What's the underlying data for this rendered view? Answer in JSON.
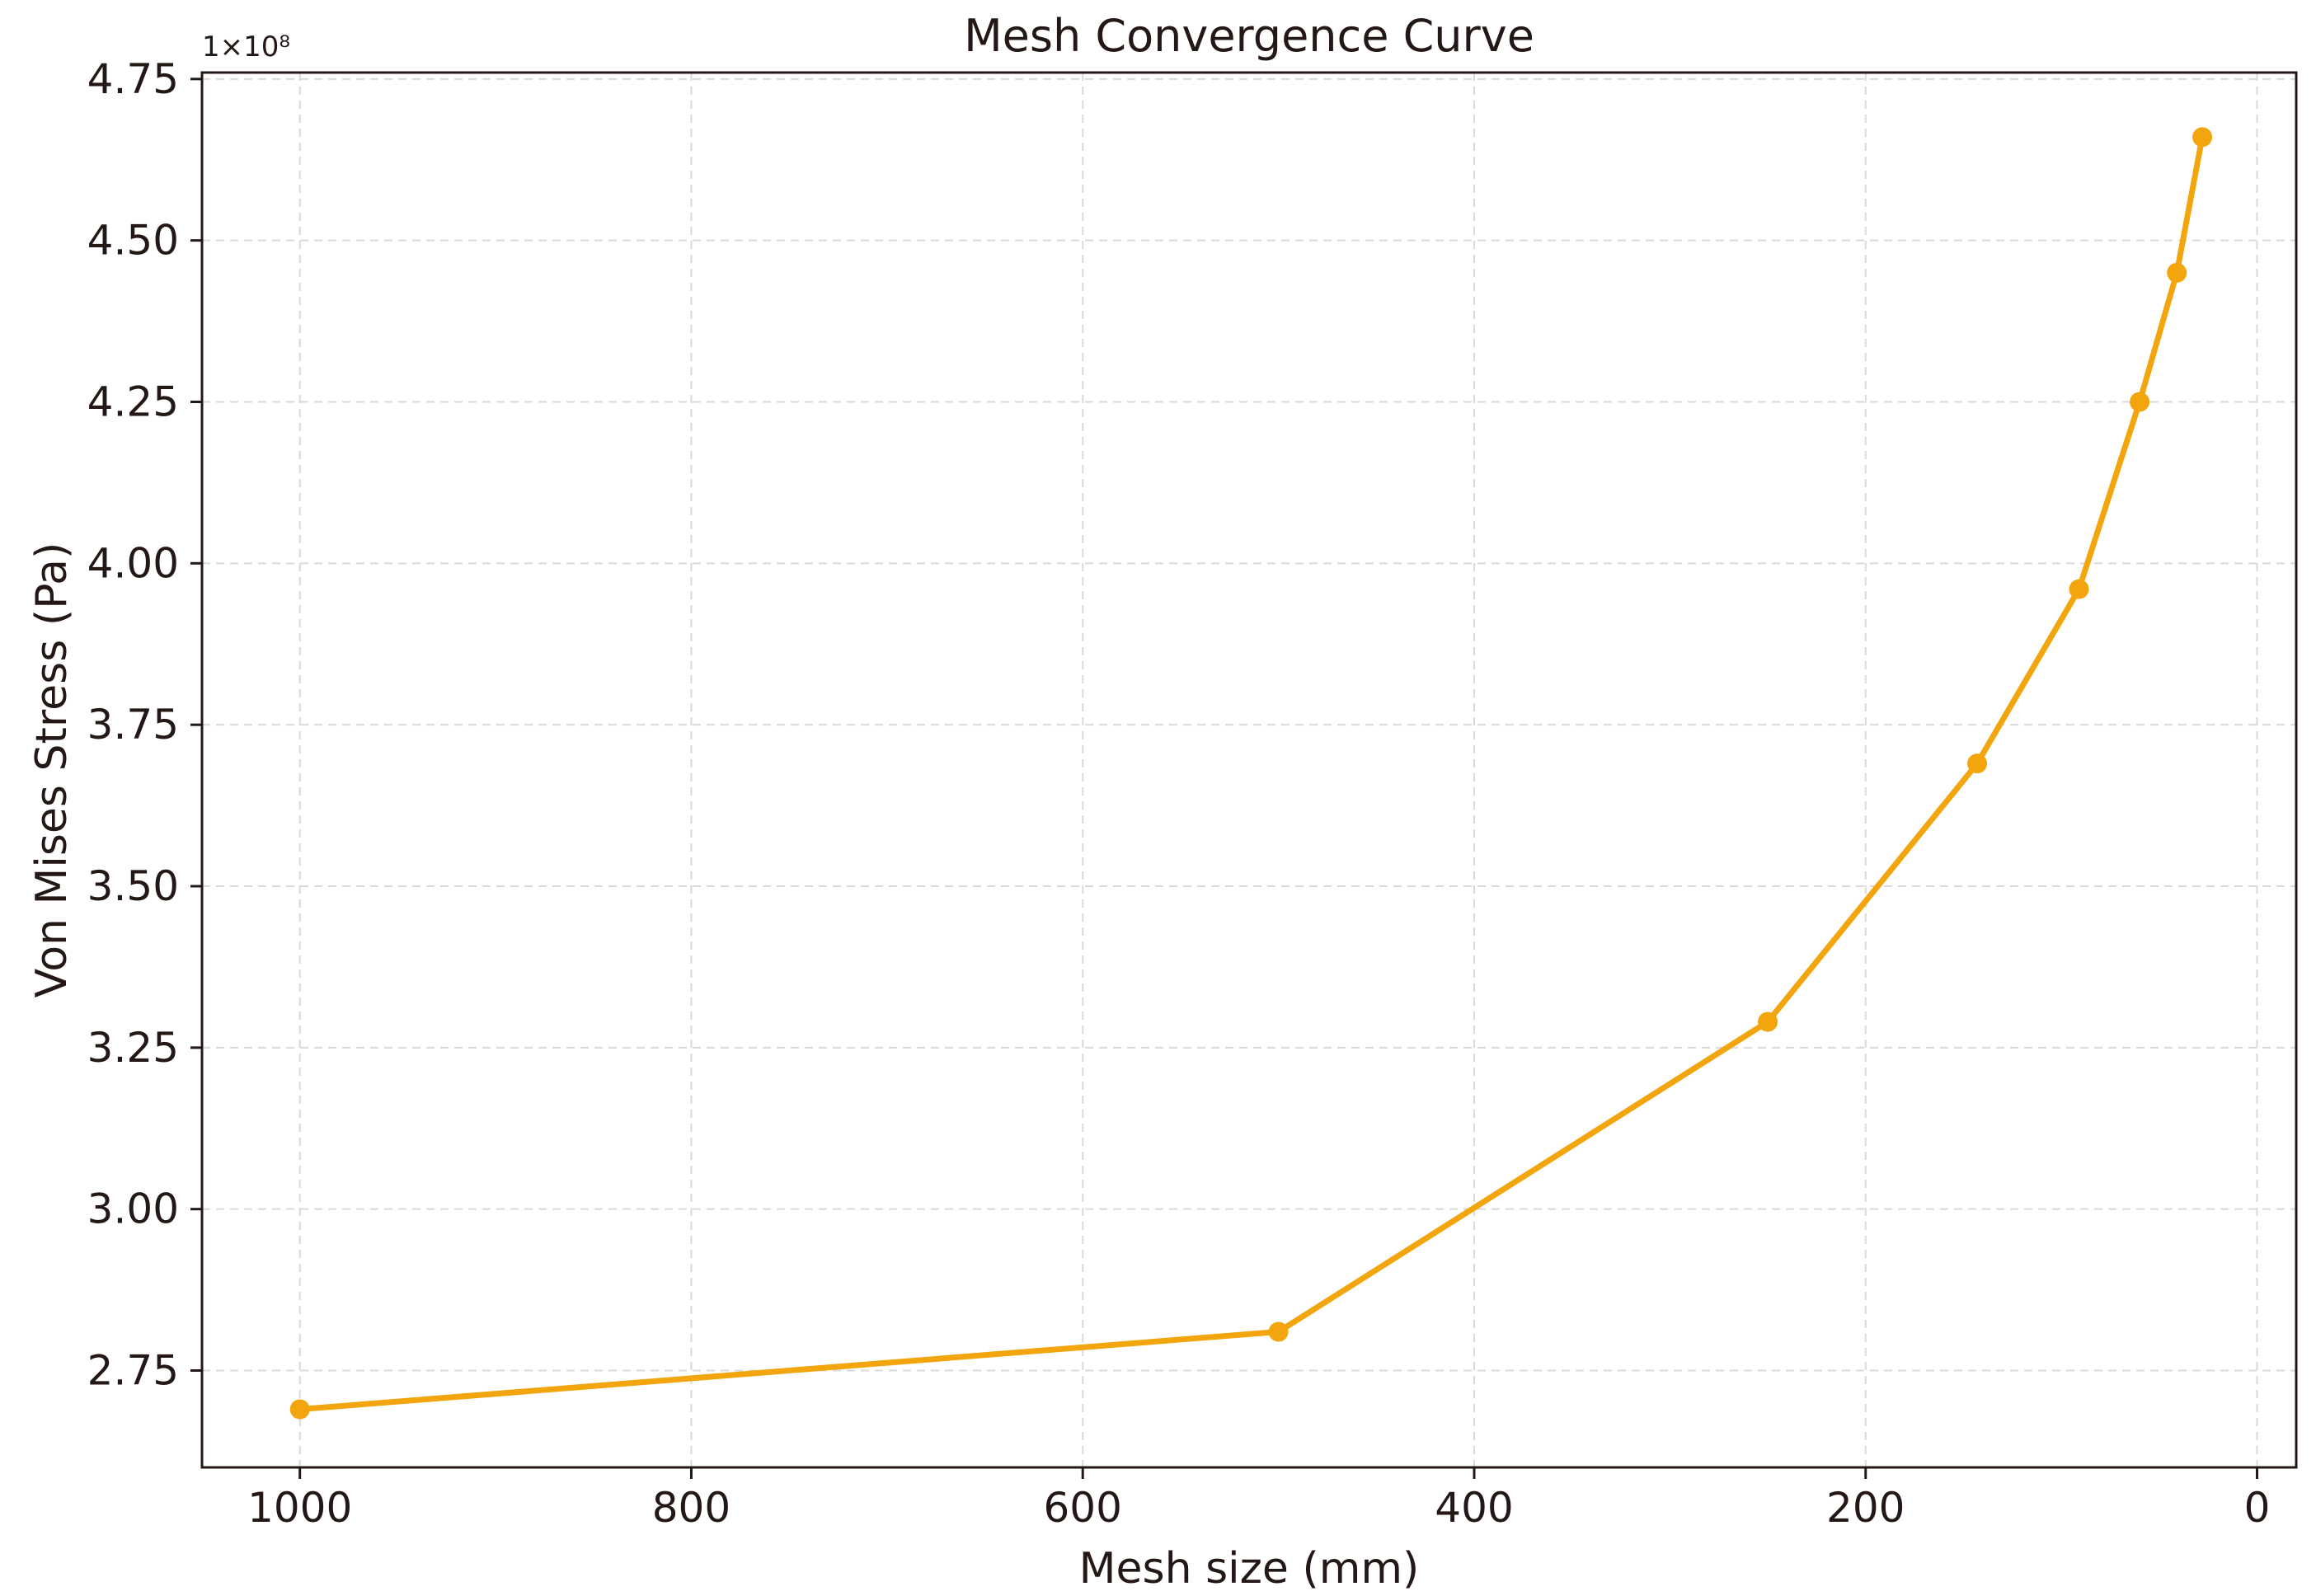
{
  "chart_data": {
    "type": "line",
    "title": "Mesh Convergence Curve",
    "xlabel": "Mesh size (mm)",
    "ylabel": "Von Mises Stress (Pa)",
    "y_offset_label": "1×10⁸",
    "x_inverted": true,
    "xlim": [
      1050,
      -20
    ],
    "ylim": [
      2.6,
      4.76
    ],
    "y_scale_factor": 100000000,
    "xticks": [
      1000,
      800,
      600,
      400,
      200,
      0
    ],
    "xtick_labels": [
      "1000",
      "800",
      "600",
      "400",
      "200",
      "0"
    ],
    "yticks": [
      2.75,
      3.0,
      3.25,
      3.5,
      3.75,
      4.0,
      4.25,
      4.5,
      4.75
    ],
    "ytick_labels": [
      "2.75",
      "3.00",
      "3.25",
      "3.50",
      "3.75",
      "4.00",
      "4.25",
      "4.50",
      "4.75"
    ],
    "grid": true,
    "legend": "none",
    "series": [
      {
        "color": "#f2a50c",
        "marker": "circle",
        "x": [
          1000,
          500,
          250,
          143,
          91,
          60,
          41,
          28
        ],
        "y": [
          2.69,
          2.81,
          3.29,
          3.69,
          3.96,
          4.25,
          4.45,
          4.66
        ]
      }
    ]
  }
}
